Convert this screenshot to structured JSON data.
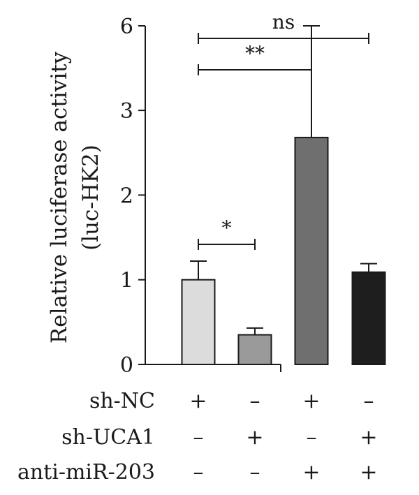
{
  "chart_data": {
    "type": "bar",
    "ylabel": [
      "Relative luciferase activity",
      "(luc-HK2)"
    ],
    "y_tick_labels": [
      "0",
      "1",
      "2",
      "3",
      "6"
    ],
    "y_axis_note": "broken axis: 0-3 linear, then jump to 6",
    "groups": [
      {
        "name": "g1",
        "value": 1.0,
        "error": 0.22,
        "color": "#dcdcdc"
      },
      {
        "name": "g2",
        "value": 0.35,
        "error": 0.08,
        "color": "#9a9a9a"
      },
      {
        "name": "g3",
        "value": 2.68,
        "error": 0.6,
        "color": "#6f6f6f"
      },
      {
        "name": "g4",
        "value": 1.09,
        "error": 0.1,
        "color": "#1e1e1e"
      }
    ],
    "significance": [
      {
        "from": 0,
        "to": 1,
        "label": "*"
      },
      {
        "from": 0,
        "to": 2,
        "label": "**"
      },
      {
        "from": 0,
        "to": 3,
        "label": "ns"
      }
    ],
    "conditions": [
      {
        "label": "sh-NC",
        "values": [
          "+",
          "–",
          "+",
          "–"
        ]
      },
      {
        "label": "sh-UCA1",
        "values": [
          "–",
          "+",
          "–",
          "+"
        ]
      },
      {
        "label": "anti-miR-203",
        "values": [
          "–",
          "–",
          "+",
          "+"
        ]
      }
    ]
  }
}
